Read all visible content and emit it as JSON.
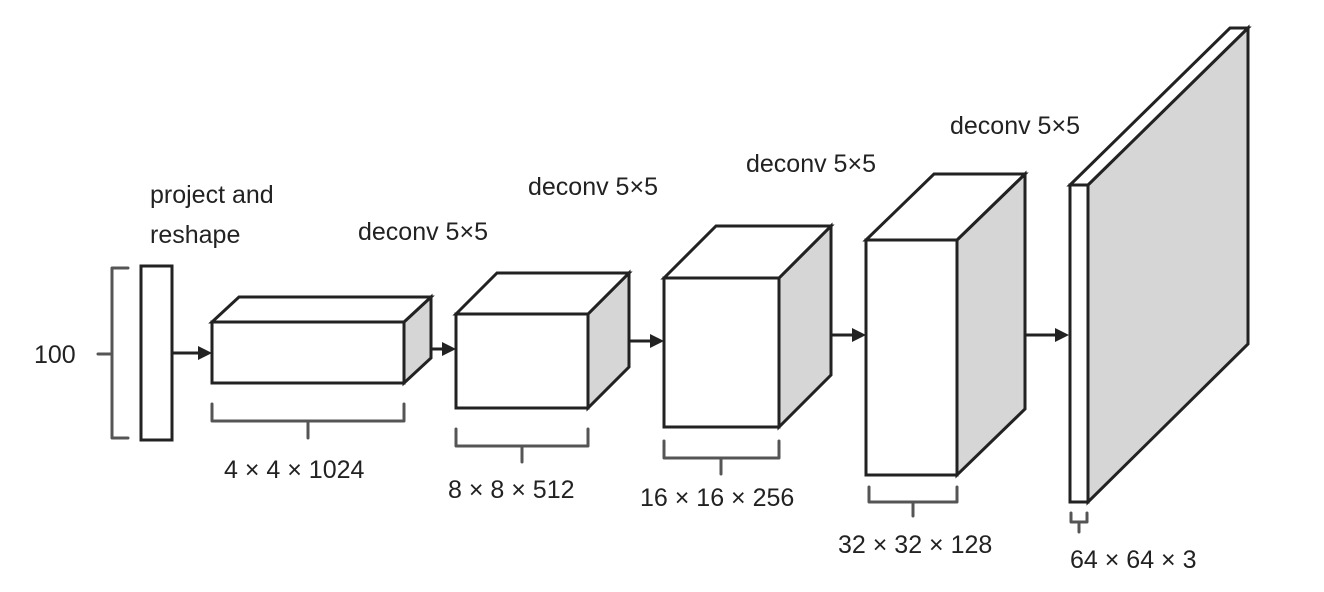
{
  "input": {
    "label": "100"
  },
  "project_label": {
    "line1": "project and",
    "line2": "reshape"
  },
  "layers": [
    {
      "op": "deconv 5×5",
      "shape": "4 × 4 × 1024"
    },
    {
      "op": "deconv 5×5",
      "shape": "8 × 8 × 512"
    },
    {
      "op": "deconv 5×5",
      "shape": "16 × 16 × 256"
    },
    {
      "op": "deconv 5×5",
      "shape": "32 × 32 × 128"
    },
    {
      "op": "",
      "shape": "64 × 64 × 3"
    }
  ],
  "colors": {
    "stroke": "#222222",
    "side_face": "#d6d6d6",
    "front_face": "#ffffff"
  }
}
